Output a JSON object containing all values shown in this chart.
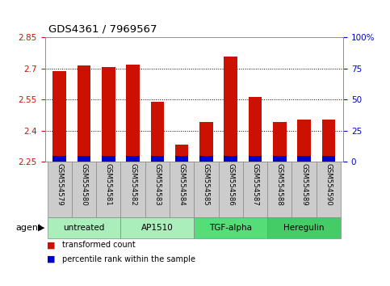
{
  "title": "GDS4361 / 7969567",
  "samples": [
    "GSM554579",
    "GSM554580",
    "GSM554581",
    "GSM554582",
    "GSM554583",
    "GSM554584",
    "GSM554585",
    "GSM554586",
    "GSM554587",
    "GSM554588",
    "GSM554589",
    "GSM554590"
  ],
  "red_values": [
    2.685,
    2.712,
    2.705,
    2.717,
    2.538,
    2.33,
    2.44,
    2.755,
    2.562,
    2.44,
    2.452,
    2.452
  ],
  "blue_values": [
    0.028,
    0.028,
    0.028,
    0.028,
    0.028,
    0.028,
    0.028,
    0.028,
    0.028,
    0.028,
    0.028,
    0.028
  ],
  "base": 2.25,
  "ylim_left": [
    2.25,
    2.85
  ],
  "ylim_right": [
    0,
    100
  ],
  "yticks_left": [
    2.25,
    2.4,
    2.55,
    2.7,
    2.85
  ],
  "yticks_right": [
    0,
    25,
    50,
    75,
    100
  ],
  "ytick_labels_left": [
    "2.25",
    "2.4",
    "2.55",
    "2.7",
    "2.85"
  ],
  "ytick_labels_right": [
    "0",
    "25",
    "50",
    "75",
    "100%"
  ],
  "groups": [
    {
      "label": "untreated",
      "start": 0,
      "end": 3,
      "color": "#AAEEBB"
    },
    {
      "label": "AP1510",
      "start": 3,
      "end": 6,
      "color": "#AAEEBB"
    },
    {
      "label": "TGF-alpha",
      "start": 6,
      "end": 9,
      "color": "#55DD77"
    },
    {
      "label": "Heregulin",
      "start": 9,
      "end": 12,
      "color": "#44CC66"
    }
  ],
  "bar_width": 0.55,
  "red_color": "#CC1100",
  "blue_color": "#0000CC",
  "grid_color": "#000000",
  "plot_bg": "#FFFFFF",
  "tick_area_bg": "#CCCCCC",
  "legend_items": [
    "transformed count",
    "percentile rank within the sample"
  ],
  "legend_colors": [
    "#CC1100",
    "#0000CC"
  ],
  "agent_label": "agent",
  "left_tick_color": "#CC1100",
  "right_tick_color": "#0000CC"
}
